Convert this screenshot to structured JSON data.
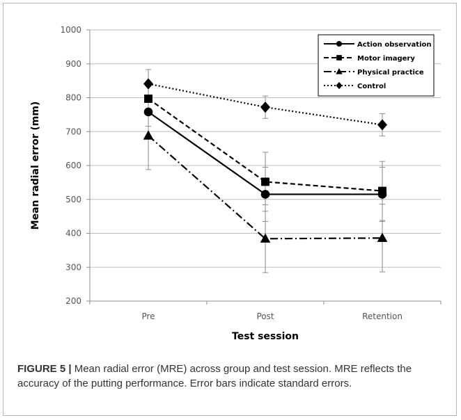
{
  "chart_data": {
    "type": "line",
    "xlabel": "Test session",
    "ylabel": "Mean radial error (mm)",
    "categories": [
      "Pre",
      "Post",
      "Retention"
    ],
    "ylim": [
      200,
      1000
    ],
    "yticks": [
      200,
      300,
      400,
      500,
      600,
      700,
      800,
      900,
      1000
    ],
    "grid": true,
    "legend_position": "top-right",
    "error_bars": true,
    "series": [
      {
        "name": "Action observation",
        "values": [
          758,
          515,
          515
        ],
        "errors": [
          42,
          80,
          80
        ],
        "marker": "circle",
        "dash": "solid"
      },
      {
        "name": "Motor imagery",
        "values": [
          797,
          552,
          525
        ],
        "errors": [
          42,
          87,
          87
        ],
        "marker": "square",
        "dash": "dashed"
      },
      {
        "name": "Physical practice",
        "values": [
          688,
          384,
          386
        ],
        "errors": [
          100,
          100,
          100
        ],
        "marker": "triangle",
        "dash": "dashdot"
      },
      {
        "name": "Control",
        "values": [
          841,
          772,
          720
        ],
        "errors": [
          42,
          33,
          33
        ],
        "marker": "diamond",
        "dash": "dotted"
      }
    ]
  },
  "caption": {
    "label": "FIGURE 5 |",
    "text": " Mean radial error (MRE) across group and test session. MRE reflects the accuracy of the putting performance. Error bars indicate standard errors."
  }
}
